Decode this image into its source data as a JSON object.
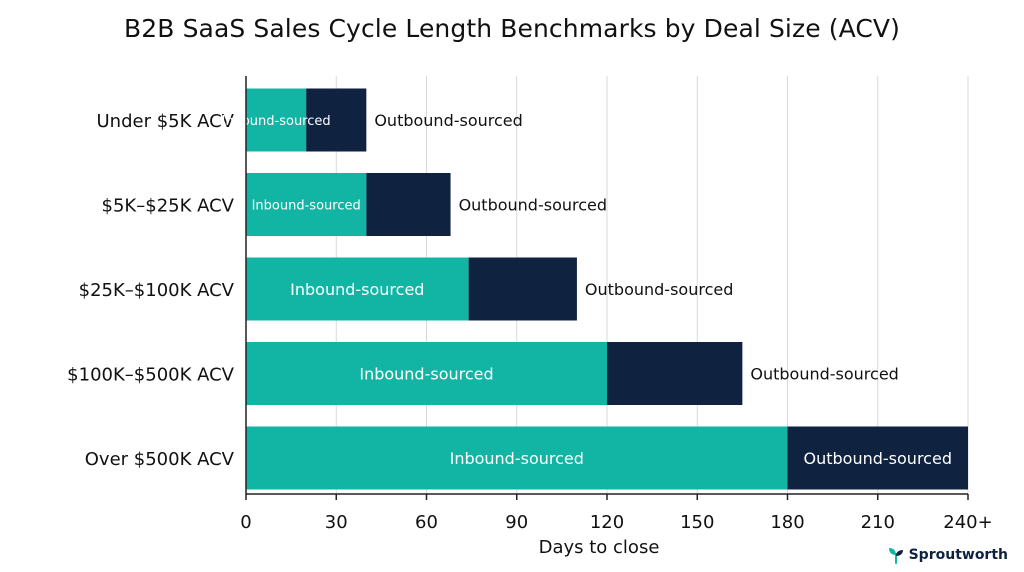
{
  "chart_data": {
    "type": "bar",
    "stacked": true,
    "orientation": "horizontal",
    "title": "B2B SaaS Sales Cycle Length Benchmarks by Deal Size (ACV)",
    "xlabel": "Days to close",
    "ylabel": "",
    "xlim": [
      0,
      240
    ],
    "xticks": [
      "0",
      "30",
      "60",
      "90",
      "120",
      "150",
      "180",
      "210",
      "240+"
    ],
    "grid": true,
    "categories": [
      "Under $5K ACV",
      "$5K–$25K ACV",
      "$25K–$100K ACV",
      "$100K–$500K ACV",
      "Over $500K ACV"
    ],
    "series": [
      {
        "name": "Inbound-sourced",
        "color": "#12b5a4",
        "values": [
          20,
          40,
          74,
          120,
          180
        ]
      },
      {
        "name": "Outbound-sourced",
        "color": "#0f2240",
        "values": [
          20,
          28,
          36,
          45,
          60
        ]
      }
    ]
  },
  "brand": {
    "name": "Sproutworth",
    "color": "#0f2240",
    "icon": "sprout-icon"
  }
}
